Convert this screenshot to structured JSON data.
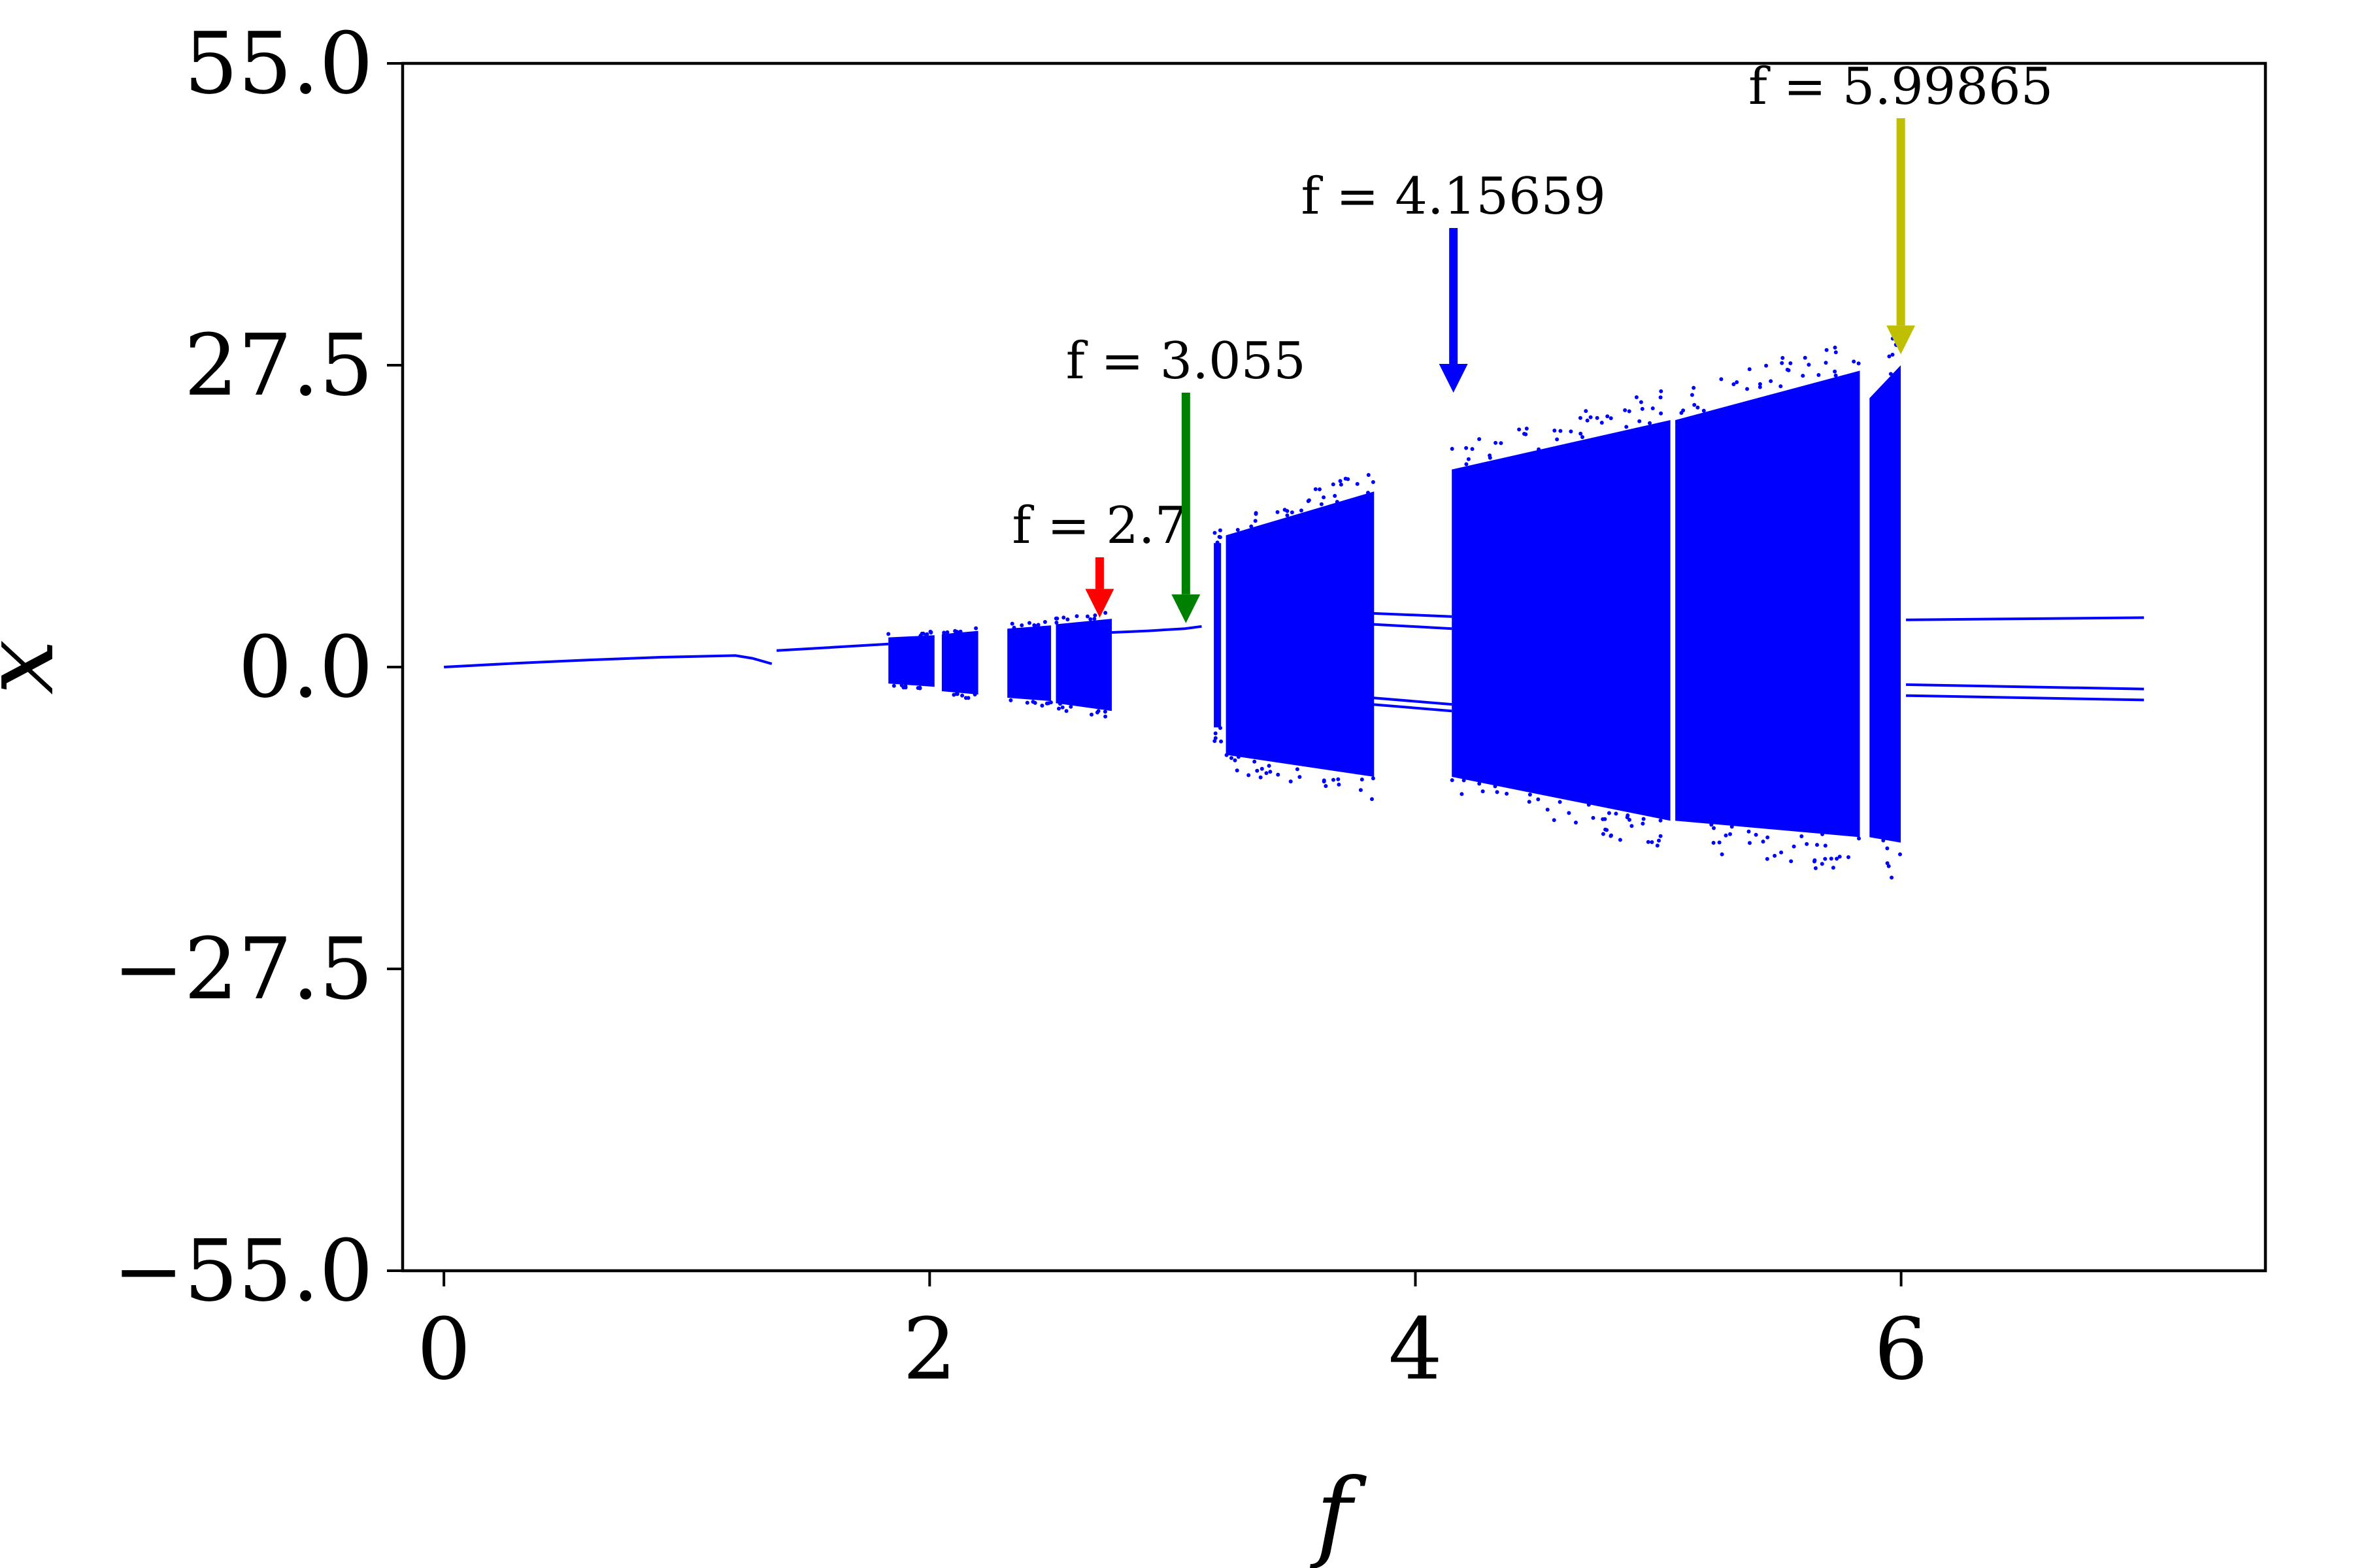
{
  "chart_data": {
    "type": "scatter",
    "title": "",
    "xlabel": "f",
    "ylabel": "x",
    "xlim": [
      -0.17,
      7.5
    ],
    "ylim": [
      -55.0,
      55.0
    ],
    "xticks": [
      0,
      2,
      4,
      6
    ],
    "xtick_labels": [
      "0",
      "2",
      "4",
      "6"
    ],
    "yticks": [
      -55.0,
      -27.5,
      0.0,
      27.5,
      55.0
    ],
    "ytick_labels": [
      "−55.0",
      "−27.5",
      "0.0",
      "27.5",
      "55.0"
    ],
    "grid": false,
    "legend": "none",
    "series_color": "#0000ff",
    "series": [
      {
        "kind": "periodic_branches",
        "branches": [
          {
            "x": [
              0.0,
              0.3,
              0.6,
              0.9,
              1.2,
              1.27,
              1.35
            ],
            "y": [
              0.0,
              0.35,
              0.65,
              0.9,
              1.05,
              0.8,
              0.3
            ]
          },
          {
            "x": [
              1.37,
              1.6,
              1.83
            ],
            "y": [
              1.5,
              1.8,
              2.1
            ]
          },
          {
            "x": [
              2.7,
              2.9,
              3.05,
              3.12
            ],
            "y": [
              3.1,
              3.3,
              3.5,
              3.7
            ]
          },
          {
            "x": [
              3.82,
              4.15
            ],
            "y": [
              4.9,
              4.6
            ]
          },
          {
            "x": [
              3.82,
              4.15
            ],
            "y": [
              3.9,
              3.5
            ]
          },
          {
            "x": [
              3.82,
              4.15
            ],
            "y": [
              -2.8,
              -3.4
            ]
          },
          {
            "x": [
              3.82,
              4.15
            ],
            "y": [
              -3.4,
              -4.0
            ]
          },
          {
            "x": [
              6.02,
              6.5,
              7.0
            ],
            "y": [
              4.3,
              4.4,
              4.5
            ]
          },
          {
            "x": [
              6.02,
              6.5,
              7.0
            ],
            "y": [
              -1.6,
              -1.8,
              -2.0
            ]
          },
          {
            "x": [
              6.02,
              6.5,
              7.0
            ],
            "y": [
              -2.6,
              -2.8,
              -3.0
            ]
          }
        ]
      },
      {
        "kind": "chaotic_bands",
        "bands": [
          {
            "x": [
              1.83,
              2.02
            ],
            "ymin": [
              -1.5,
              -1.8
            ],
            "ymax": [
              2.7,
              2.9
            ]
          },
          {
            "x": [
              2.05,
              2.2
            ],
            "ymin": [
              -2.2,
              -2.5
            ],
            "ymax": [
              3.0,
              3.3
            ]
          },
          {
            "x": [
              2.32,
              2.5
            ],
            "ymin": [
              -2.8,
              -3.1
            ],
            "ymax": [
              3.5,
              3.8
            ]
          },
          {
            "x": [
              2.52,
              2.75
            ],
            "ymin": [
              -3.3,
              -4.0
            ],
            "ymax": [
              3.9,
              4.4
            ]
          },
          {
            "x": [
              3.17,
              3.2
            ],
            "ymin": [
              -5.5,
              -5.5
            ],
            "ymax": [
              11.3,
              11.3
            ]
          },
          {
            "x": [
              3.22,
              3.83
            ],
            "ymin": [
              -8.0,
              -10.0
            ],
            "ymax": [
              12.0,
              16.0
            ]
          },
          {
            "x": [
              4.15,
              5.05
            ],
            "ymin": [
              -10.0,
              -14.0
            ],
            "ymax": [
              18.0,
              22.5
            ]
          },
          {
            "x": [
              5.07,
              5.83
            ],
            "ymin": [
              -14.0,
              -15.5
            ],
            "ymax": [
              22.5,
              27.0
            ]
          },
          {
            "x": [
              5.87,
              5.99865
            ],
            "ymin": [
              -15.5,
              -16.0
            ],
            "ymax": [
              24.5,
              27.5
            ]
          }
        ]
      }
    ],
    "annotations": [
      {
        "text": "f = 2.7",
        "f": 2.7,
        "arrow_from": 10.0,
        "arrow_to": 4.5,
        "color": "#ff0000"
      },
      {
        "text": "f = 3.055",
        "f": 3.055,
        "arrow_from": 25.0,
        "arrow_to": 4.0,
        "color": "#008000"
      },
      {
        "text": "f = 4.15659",
        "f": 4.15659,
        "arrow_from": 40.0,
        "arrow_to": 25.0,
        "color": "#0000ff"
      },
      {
        "text": "f = 5.99865",
        "f": 5.99865,
        "arrow_from": 50.0,
        "arrow_to": 28.5,
        "color": "#bfbf00"
      }
    ]
  }
}
